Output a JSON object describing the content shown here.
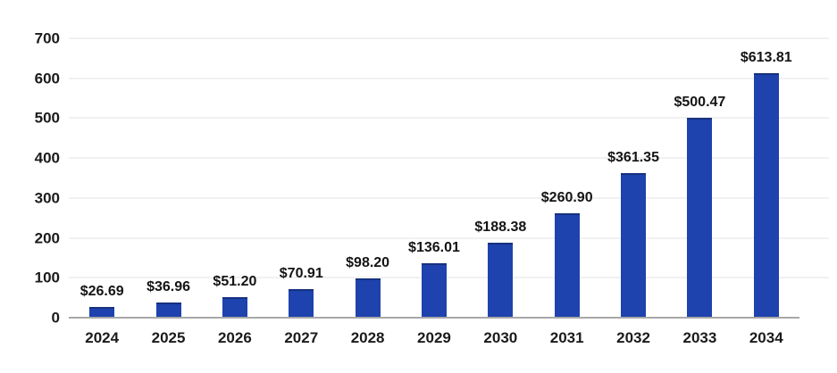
{
  "chart_data": {
    "type": "bar",
    "categories": [
      "2024",
      "2025",
      "2026",
      "2027",
      "2028",
      "2029",
      "2030",
      "2031",
      "2032",
      "2033",
      "2034"
    ],
    "values": [
      26.69,
      36.96,
      51.2,
      70.91,
      98.2,
      136.01,
      188.38,
      260.9,
      361.35,
      500.47,
      613.81
    ],
    "value_labels": [
      "$26.69",
      "$36.96",
      "$51.20",
      "$70.91",
      "$98.20",
      "$136.01",
      "$188.38",
      "$260.90",
      "$361.35",
      "$500.47",
      "$613.81"
    ],
    "yticks": [
      0,
      100,
      200,
      300,
      400,
      500,
      600,
      700
    ],
    "ylim": [
      0,
      700
    ],
    "grid": true,
    "legend_position": "none",
    "colors": {
      "bar": "#1e42ae",
      "bar_top_edge": "#16317e",
      "gridline": "#f1f1f1",
      "axis_line": "#a8a8a8",
      "text": "#1b1b1b",
      "background": "#ffffff"
    }
  }
}
